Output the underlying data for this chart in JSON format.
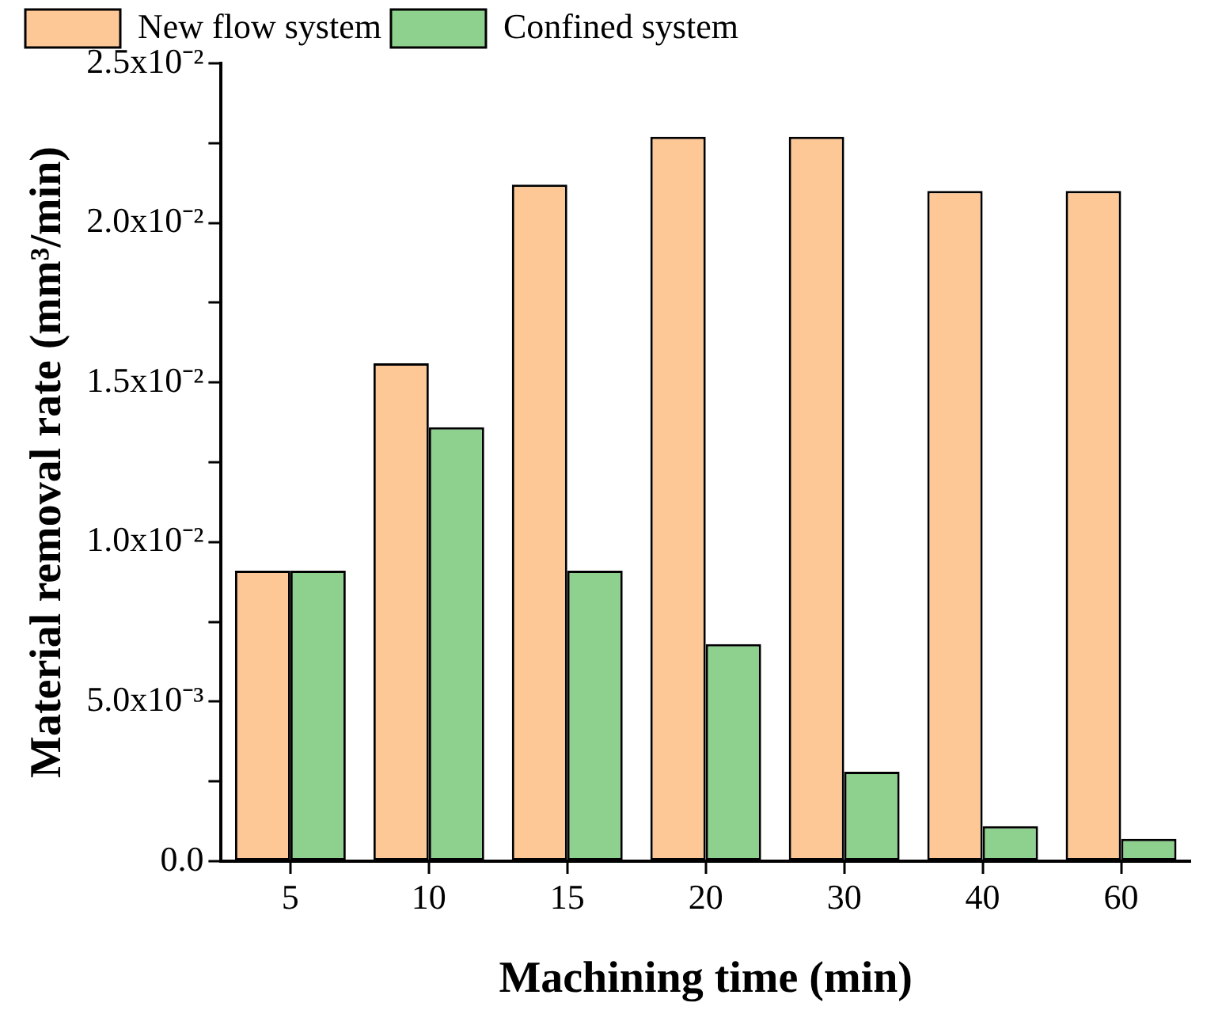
{
  "chart_data": {
    "type": "bar",
    "xlabel": "Machining time (min)",
    "ylabel": "Material removal rate (mm³/min)",
    "categories": [
      "5",
      "10",
      "15",
      "20",
      "30",
      "40",
      "60"
    ],
    "series": [
      {
        "name": "New flow system",
        "color": "#fdc896",
        "values": [
          0.0091,
          0.0156,
          0.0212,
          0.0227,
          0.0227,
          0.021,
          0.021
        ]
      },
      {
        "name": "Confined system",
        "color": "#8ed18e",
        "values": [
          0.0091,
          0.0136,
          0.0091,
          0.0068,
          0.0028,
          0.0011,
          0.0007
        ]
      }
    ],
    "ylim": [
      0,
      0.025
    ],
    "yticks": [
      {
        "value": 0,
        "label": "0.0"
      },
      {
        "value": 0.0025,
        "label": null
      },
      {
        "value": 0.005,
        "label": "5.0x10⁻³"
      },
      {
        "value": 0.0075,
        "label": null
      },
      {
        "value": 0.01,
        "label": "1.0x10⁻²"
      },
      {
        "value": 0.0125,
        "label": null
      },
      {
        "value": 0.015,
        "label": "1.5x10⁻²"
      },
      {
        "value": 0.0175,
        "label": null
      },
      {
        "value": 0.02,
        "label": "2.0x10⁻²"
      },
      {
        "value": 0.0225,
        "label": null
      },
      {
        "value": 0.025,
        "label": "2.5x10⁻²"
      }
    ],
    "grid": false,
    "legend": "top left"
  }
}
